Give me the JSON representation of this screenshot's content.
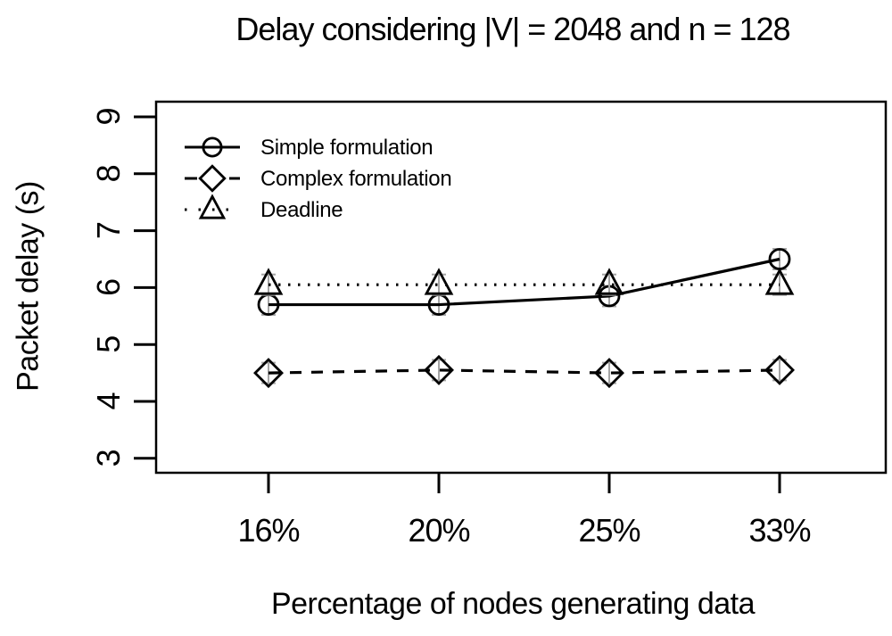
{
  "figure": {
    "title": "Delay considering |V| = 2048 and n = 128",
    "xlabel": "Percentage of nodes generating data",
    "ylabel": "Packet delay (s)"
  },
  "chart_data": {
    "type": "line",
    "title": "Delay considering |V| = 2048 and n = 128",
    "xlabel": "Percentage of nodes generating data",
    "ylabel": "Packet delay (s)",
    "categories": [
      "16%",
      "20%",
      "25%",
      "33%"
    ],
    "y_ticks": [
      "3",
      "4",
      "5",
      "6",
      "7",
      "8",
      "9"
    ],
    "ylim": [
      2.8,
      9.3
    ],
    "grid": false,
    "legend_position": "top-left-inside",
    "error_bar_halfheight": 0.18,
    "series": [
      {
        "name": "Simple formulation",
        "marker": "circle",
        "line": "solid",
        "values": [
          5.7,
          5.7,
          5.85,
          6.5
        ]
      },
      {
        "name": "Complex formulation",
        "marker": "diamond",
        "line": "dashed",
        "values": [
          4.5,
          4.55,
          4.5,
          4.55
        ]
      },
      {
        "name": "Deadline",
        "marker": "triangle",
        "line": "dotted",
        "values": [
          6.05,
          6.05,
          6.05,
          6.05
        ]
      }
    ],
    "colors": {
      "foreground": "#000000",
      "background": "#ffffff",
      "error_bar": "#a6a6a6"
    }
  }
}
